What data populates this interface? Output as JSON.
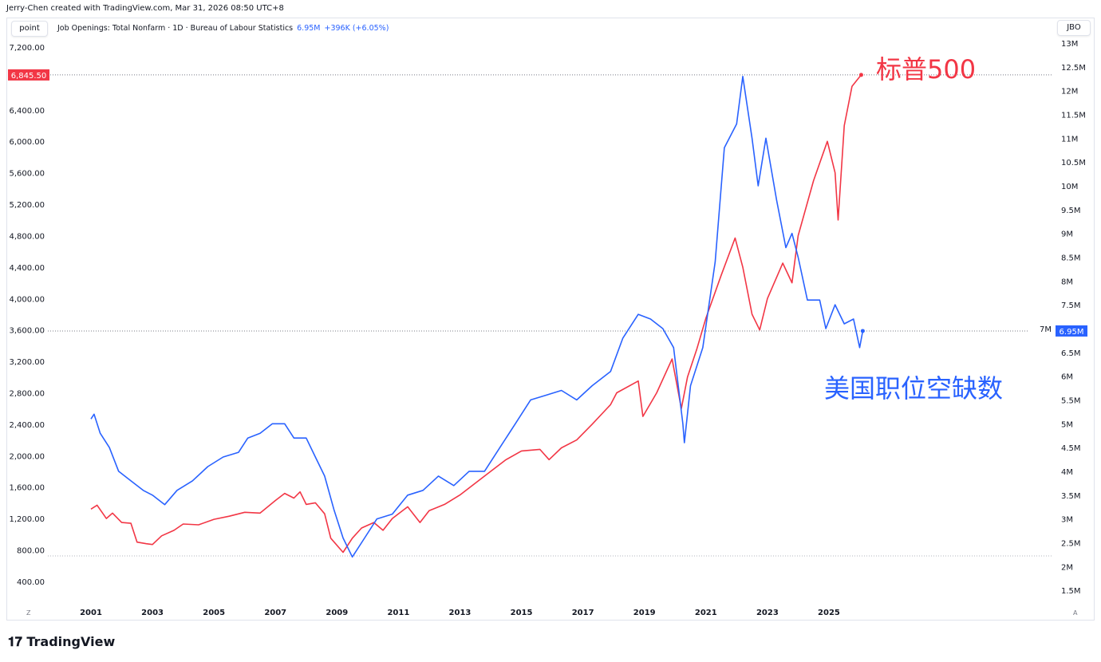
{
  "credit": "Jerry-Chen created with TradingView.com, Mar 31, 2026 08:50 UTC+8",
  "left_scale_button": "point",
  "right_scale_button": "JBO",
  "legend": {
    "title": "Job Openings: Total Nonfarm · 1D · Bureau of Labour Statistics",
    "value": "6.95M",
    "change": "+396K (+6.05%)"
  },
  "corner_left": "Z",
  "corner_right": "A",
  "logo": "TradingView",
  "chart_data": {
    "type": "line",
    "x_ticks": [
      "2001",
      "2003",
      "2005",
      "2007",
      "2009",
      "2011",
      "2013",
      "2015",
      "2017",
      "2019",
      "2021",
      "2023",
      "2025"
    ],
    "left_axis": {
      "ylim": [
        400,
        7200
      ],
      "ticks": [
        "7,200.00",
        "6,400.00",
        "6,000.00",
        "5,600.00",
        "5,200.00",
        "4,800.00",
        "4,400.00",
        "4,000.00",
        "3,600.00",
        "3,200.00",
        "2,800.00",
        "2,400.00",
        "2,000.00",
        "1,600.00",
        "1,200.00",
        "800.00",
        "400.00"
      ],
      "last_label": "6,845.50",
      "last_value": 6845.5
    },
    "right_axis": {
      "ylim": [
        1.5,
        13
      ],
      "ticks": [
        "13M",
        "12.5M",
        "12M",
        "11.5M",
        "11M",
        "10.5M",
        "10M",
        "9.5M",
        "9M",
        "8.5M",
        "8M",
        "7.5M",
        "7M",
        "6.5M",
        "6M",
        "5.5M",
        "5M",
        "4.5M",
        "4M",
        "3.5M",
        "3M",
        "2.5M",
        "2M",
        "1.5M"
      ],
      "last_label": "6.95M",
      "last_value": 6.95
    },
    "grid": false,
    "series": [
      {
        "name": "标普500",
        "axis": "left",
        "color": "#f23645",
        "points": [
          [
            2001.0,
            1320
          ],
          [
            2001.2,
            1370
          ],
          [
            2001.5,
            1200
          ],
          [
            2001.7,
            1270
          ],
          [
            2002.0,
            1150
          ],
          [
            2002.3,
            1140
          ],
          [
            2002.5,
            900
          ],
          [
            2002.8,
            880
          ],
          [
            2003.0,
            870
          ],
          [
            2003.3,
            980
          ],
          [
            2003.7,
            1050
          ],
          [
            2004.0,
            1130
          ],
          [
            2004.5,
            1120
          ],
          [
            2005.0,
            1190
          ],
          [
            2005.5,
            1230
          ],
          [
            2006.0,
            1280
          ],
          [
            2006.5,
            1270
          ],
          [
            2007.0,
            1430
          ],
          [
            2007.3,
            1520
          ],
          [
            2007.6,
            1460
          ],
          [
            2007.8,
            1540
          ],
          [
            2008.0,
            1380
          ],
          [
            2008.3,
            1400
          ],
          [
            2008.6,
            1260
          ],
          [
            2008.8,
            950
          ],
          [
            2009.2,
            770
          ],
          [
            2009.5,
            950
          ],
          [
            2009.8,
            1080
          ],
          [
            2010.2,
            1150
          ],
          [
            2010.5,
            1050
          ],
          [
            2010.8,
            1200
          ],
          [
            2011.3,
            1350
          ],
          [
            2011.7,
            1150
          ],
          [
            2012.0,
            1300
          ],
          [
            2012.5,
            1380
          ],
          [
            2013.0,
            1500
          ],
          [
            2013.5,
            1650
          ],
          [
            2014.0,
            1800
          ],
          [
            2014.5,
            1950
          ],
          [
            2015.0,
            2060
          ],
          [
            2015.6,
            2080
          ],
          [
            2015.9,
            1950
          ],
          [
            2016.3,
            2100
          ],
          [
            2016.8,
            2200
          ],
          [
            2017.3,
            2400
          ],
          [
            2017.9,
            2650
          ],
          [
            2018.1,
            2800
          ],
          [
            2018.8,
            2950
          ],
          [
            2018.95,
            2500
          ],
          [
            2019.4,
            2800
          ],
          [
            2019.9,
            3230
          ],
          [
            2020.2,
            2600
          ],
          [
            2020.4,
            3000
          ],
          [
            2020.7,
            3350
          ],
          [
            2021.0,
            3750
          ],
          [
            2021.5,
            4300
          ],
          [
            2021.95,
            4770
          ],
          [
            2022.2,
            4400
          ],
          [
            2022.5,
            3800
          ],
          [
            2022.75,
            3600
          ],
          [
            2023.0,
            4000
          ],
          [
            2023.5,
            4450
          ],
          [
            2023.8,
            4200
          ],
          [
            2024.0,
            4800
          ],
          [
            2024.5,
            5500
          ],
          [
            2024.95,
            6000
          ],
          [
            2025.2,
            5600
          ],
          [
            2025.3,
            5000
          ],
          [
            2025.5,
            6200
          ],
          [
            2025.75,
            6700
          ],
          [
            2026.05,
            6845.5
          ]
        ]
      },
      {
        "name": "美国职位空缺数",
        "axis": "right",
        "color": "#2962ff",
        "points": [
          [
            2001.0,
            5.1
          ],
          [
            2001.1,
            5.2
          ],
          [
            2001.3,
            4.8
          ],
          [
            2001.6,
            4.5
          ],
          [
            2001.9,
            4.0
          ],
          [
            2002.3,
            3.8
          ],
          [
            2002.7,
            3.6
          ],
          [
            2003.0,
            3.5
          ],
          [
            2003.4,
            3.3
          ],
          [
            2003.8,
            3.6
          ],
          [
            2004.3,
            3.8
          ],
          [
            2004.8,
            4.1
          ],
          [
            2005.3,
            4.3
          ],
          [
            2005.8,
            4.4
          ],
          [
            2006.1,
            4.7
          ],
          [
            2006.5,
            4.8
          ],
          [
            2006.9,
            5.0
          ],
          [
            2007.3,
            5.0
          ],
          [
            2007.6,
            4.7
          ],
          [
            2008.0,
            4.7
          ],
          [
            2008.3,
            4.3
          ],
          [
            2008.6,
            3.9
          ],
          [
            2008.9,
            3.2
          ],
          [
            2009.2,
            2.6
          ],
          [
            2009.5,
            2.2
          ],
          [
            2009.9,
            2.6
          ],
          [
            2010.3,
            3.0
          ],
          [
            2010.8,
            3.1
          ],
          [
            2011.3,
            3.5
          ],
          [
            2011.8,
            3.6
          ],
          [
            2012.3,
            3.9
          ],
          [
            2012.8,
            3.7
          ],
          [
            2013.3,
            4.0
          ],
          [
            2013.8,
            4.0
          ],
          [
            2014.3,
            4.5
          ],
          [
            2014.8,
            5.0
          ],
          [
            2015.3,
            5.5
          ],
          [
            2015.8,
            5.6
          ],
          [
            2016.3,
            5.7
          ],
          [
            2016.8,
            5.5
          ],
          [
            2017.3,
            5.8
          ],
          [
            2017.9,
            6.1
          ],
          [
            2018.3,
            6.8
          ],
          [
            2018.8,
            7.3
          ],
          [
            2019.2,
            7.2
          ],
          [
            2019.6,
            7.0
          ],
          [
            2019.95,
            6.6
          ],
          [
            2020.25,
            5.0
          ],
          [
            2020.3,
            4.6
          ],
          [
            2020.5,
            5.8
          ],
          [
            2020.9,
            6.6
          ],
          [
            2021.3,
            8.4
          ],
          [
            2021.6,
            10.8
          ],
          [
            2022.0,
            11.3
          ],
          [
            2022.2,
            12.3
          ],
          [
            2022.5,
            11.0
          ],
          [
            2022.7,
            10.0
          ],
          [
            2022.95,
            11.0
          ],
          [
            2023.3,
            9.7
          ],
          [
            2023.6,
            8.7
          ],
          [
            2023.8,
            9.0
          ],
          [
            2024.0,
            8.5
          ],
          [
            2024.3,
            7.6
          ],
          [
            2024.7,
            7.6
          ],
          [
            2024.9,
            7.0
          ],
          [
            2025.2,
            7.5
          ],
          [
            2025.5,
            7.1
          ],
          [
            2025.8,
            7.2
          ],
          [
            2026.0,
            6.6
          ],
          [
            2026.1,
            6.95
          ]
        ]
      }
    ],
    "annotations": [
      "标普500",
      "美国职位空缺数"
    ]
  }
}
